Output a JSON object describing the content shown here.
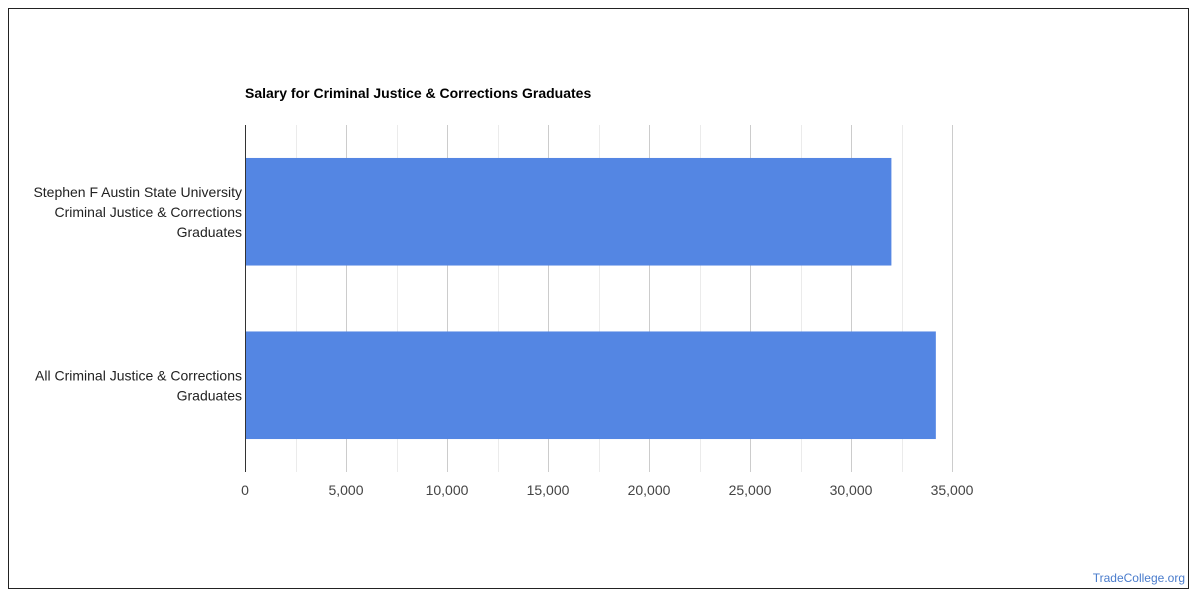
{
  "chart_data": {
    "type": "bar",
    "orientation": "horizontal",
    "title": "Salary for Criminal Justice & Corrections Graduates",
    "categories": [
      "Stephen F Austin State University Criminal Justice & Corrections Graduates",
      "All Criminal Justice & Corrections Graduates"
    ],
    "category_lines": [
      [
        "Stephen F Austin State University",
        "Criminal Justice & Corrections",
        "Graduates"
      ],
      [
        "All Criminal Justice & Corrections",
        "Graduates"
      ]
    ],
    "values": [
      32000,
      34200
    ],
    "xlim": [
      0,
      35000
    ],
    "x_ticks": [
      0,
      5000,
      10000,
      15000,
      20000,
      25000,
      30000,
      35000
    ],
    "x_tick_labels": [
      "0",
      "5,000",
      "10,000",
      "15,000",
      "20,000",
      "25,000",
      "30,000",
      "35,000"
    ],
    "xlabel": "",
    "ylabel": "",
    "grid": true,
    "legend": "none",
    "bar_color": "#5486e3"
  },
  "footer": {
    "link_text": "TradeCollege.org",
    "link_color": "#4a7ccc"
  }
}
